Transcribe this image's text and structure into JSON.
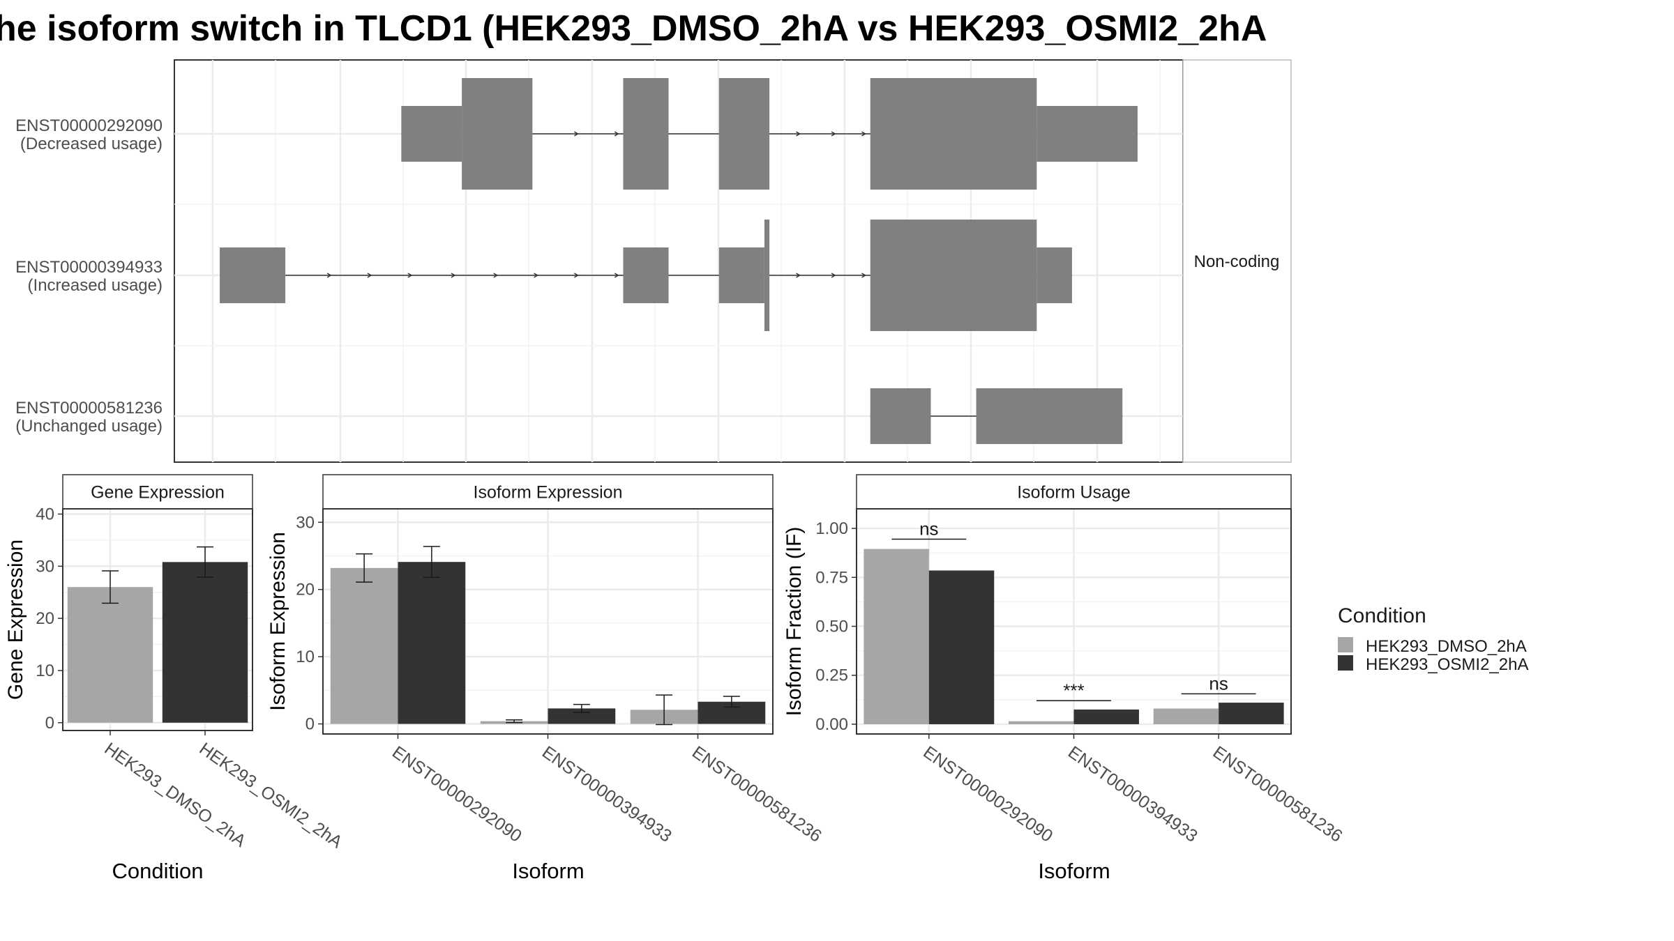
{
  "title": "he isoform switch in TLCD1 (HEK293_DMSO_2hA vs HEK293_OSMI2_2hA",
  "colors": {
    "exon": "#808080",
    "intron": "#333333",
    "cond1": "#a6a6a6",
    "cond2": "#333333",
    "grid": "#ebebeb",
    "frame": "#333333"
  },
  "structure": {
    "strip_label": "Non-coding",
    "isoforms": [
      {
        "id": "ENST00000292090",
        "usage_label": "(Decreased usage)",
        "exons": [
          {
            "start": 0.225,
            "end": 0.285,
            "height": "utr"
          },
          {
            "start": 0.285,
            "end": 0.355,
            "height": "cds"
          },
          {
            "start": 0.445,
            "end": 0.49,
            "height": "cds"
          },
          {
            "start": 0.54,
            "end": 0.59,
            "height": "cds"
          },
          {
            "start": 0.69,
            "end": 0.855,
            "height": "cds"
          },
          {
            "start": 0.855,
            "end": 0.955,
            "height": "utr"
          }
        ],
        "arrows": [
          0.4,
          0.44,
          0.62,
          0.655,
          0.685
        ]
      },
      {
        "id": "ENST00000394933",
        "usage_label": "(Increased usage)",
        "exons": [
          {
            "start": 0.045,
            "end": 0.11,
            "height": "utr"
          },
          {
            "start": 0.445,
            "end": 0.49,
            "height": "utr"
          },
          {
            "start": 0.54,
            "end": 0.585,
            "height": "utr"
          },
          {
            "start": 0.585,
            "end": 0.59,
            "height": "cds"
          },
          {
            "start": 0.69,
            "end": 0.855,
            "height": "cds"
          },
          {
            "start": 0.855,
            "end": 0.89,
            "height": "utr"
          }
        ],
        "arrows": [
          0.155,
          0.195,
          0.235,
          0.278,
          0.32,
          0.36,
          0.4,
          0.44,
          0.62,
          0.655,
          0.685
        ]
      },
      {
        "id": "ENST00000581236",
        "usage_label": "(Unchanged usage)",
        "exons": [
          {
            "start": 0.69,
            "end": 0.75,
            "height": "utr"
          },
          {
            "start": 0.795,
            "end": 0.94,
            "height": "utr"
          }
        ],
        "arrows": []
      }
    ]
  },
  "chart_data": [
    {
      "type": "bar",
      "panel_title": "Gene Expression",
      "xlabel": "Condition",
      "ylabel": "Gene Expression",
      "categories": [
        "HEK293_DMSO_2hA",
        "HEK293_OSMI2_2hA"
      ],
      "series": [
        {
          "name": "HEK293_DMSO_2hA",
          "values": [
            26,
            null
          ],
          "errors": [
            3.1,
            null
          ]
        },
        {
          "name": "HEK293_OSMI2_2hA",
          "values": [
            null,
            30.8
          ],
          "errors": [
            null,
            2.9
          ]
        }
      ],
      "ylim": [
        -1.5,
        41
      ],
      "yticks": [
        0,
        10,
        20,
        30,
        40
      ],
      "ytick_labels": [
        "0",
        "10",
        "20",
        "30",
        "40"
      ]
    },
    {
      "type": "bar",
      "panel_title": "Isoform Expression",
      "xlabel": "Isoform",
      "ylabel": "Isoform Expression",
      "categories": [
        "ENST00000292090",
        "ENST00000394933",
        "ENST00000581236"
      ],
      "series": [
        {
          "name": "HEK293_DMSO_2hA",
          "values": [
            23.2,
            0.4,
            2.1
          ],
          "errors": [
            2.1,
            0.2,
            2.2
          ]
        },
        {
          "name": "HEK293_OSMI2_2hA",
          "values": [
            24.1,
            2.3,
            3.3
          ],
          "errors": [
            2.3,
            0.6,
            0.8
          ]
        }
      ],
      "ylim": [
        -1.5,
        32
      ],
      "yticks": [
        0,
        10,
        20,
        30
      ],
      "ytick_labels": [
        "0",
        "10",
        "20",
        "30"
      ]
    },
    {
      "type": "bar",
      "panel_title": "Isoform Usage",
      "xlabel": "Isoform",
      "ylabel": "Isoform Fraction (IF)",
      "categories": [
        "ENST00000292090",
        "ENST00000394933",
        "ENST00000581236"
      ],
      "series": [
        {
          "name": "HEK293_DMSO_2hA",
          "values": [
            0.895,
            0.015,
            0.08
          ]
        },
        {
          "name": "HEK293_OSMI2_2hA",
          "values": [
            0.785,
            0.075,
            0.11
          ]
        }
      ],
      "significance": [
        "ns",
        "***",
        "ns"
      ],
      "sig_levels": [
        0.945,
        0.12,
        0.155
      ],
      "ylim": [
        -0.05,
        1.1
      ],
      "yticks": [
        0,
        0.25,
        0.5,
        0.75,
        1.0
      ],
      "ytick_labels": [
        "0.00",
        "0.25",
        "0.50",
        "0.75",
        "1.00"
      ]
    }
  ],
  "legend": {
    "title": "Condition",
    "items": [
      "HEK293_DMSO_2hA",
      "HEK293_OSMI2_2hA"
    ]
  }
}
